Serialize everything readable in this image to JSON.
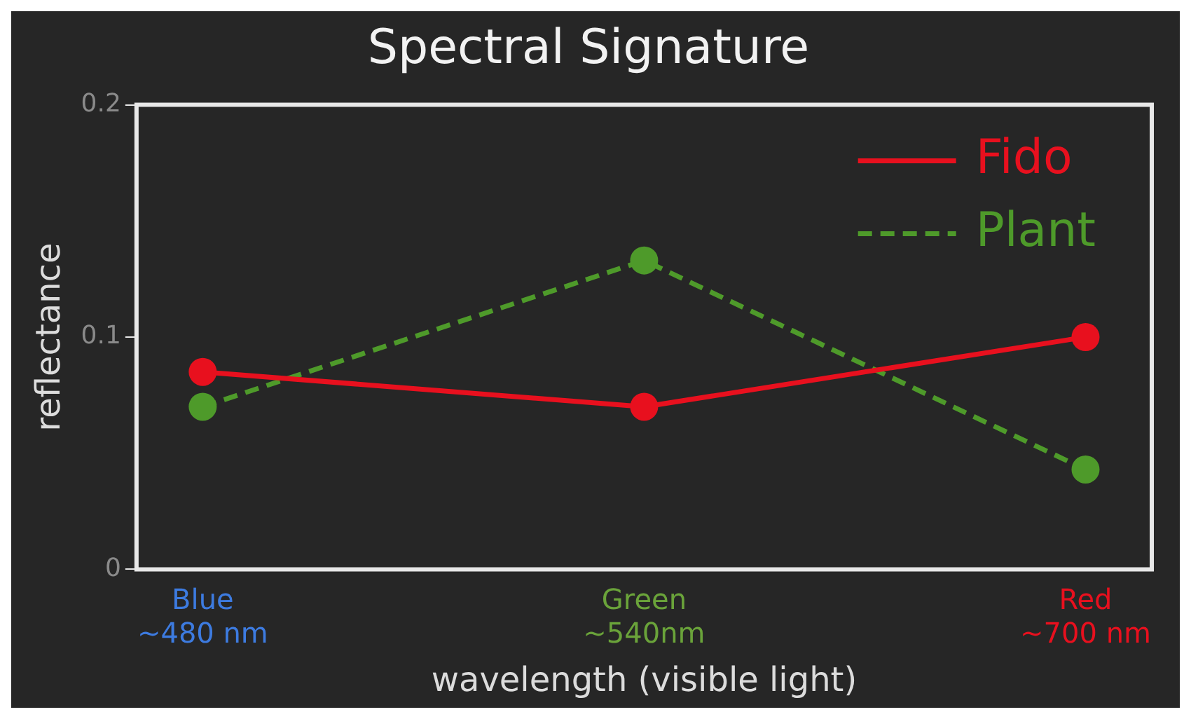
{
  "chart_data": {
    "type": "line",
    "title": "Spectral Signature",
    "xlabel": "wavelength (visible light)",
    "ylabel": "reflectance",
    "categories": [
      "Blue\n~480 nm",
      "Green\n~540nm",
      "Red\n~700 nm"
    ],
    "series": [
      {
        "name": "Fido",
        "color": "#e8101e",
        "values": [
          0.085,
          0.07,
          0.1
        ],
        "line_style": "solid"
      },
      {
        "name": "Plant",
        "color": "#4e9a2a",
        "values": [
          0.07,
          0.133,
          0.043
        ],
        "line_style": "dashed"
      }
    ],
    "ylim": [
      0,
      0.2
    ],
    "yticks": [
      0,
      0.1,
      0.2
    ],
    "grid": false,
    "legend": "top right",
    "marker": "circle"
  }
}
